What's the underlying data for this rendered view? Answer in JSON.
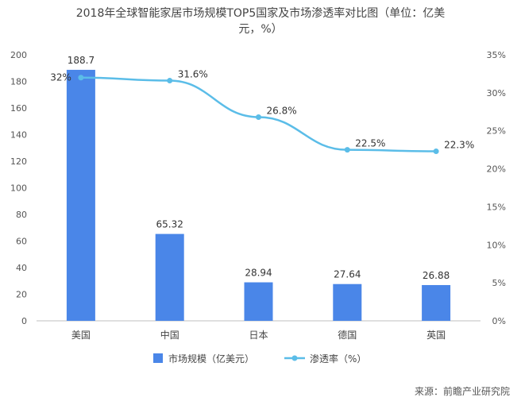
{
  "chart_data": {
    "type": "bar+line",
    "title": "2018年全球智能家居市场规模TOP5国家及市场渗透率对比图（单位：亿美元，%）",
    "categories": [
      "美国",
      "中国",
      "日本",
      "德国",
      "英国"
    ],
    "series": [
      {
        "name": "市场规模（亿美元）",
        "type": "bar",
        "axis": "left",
        "color": "#4a86e8",
        "values": [
          188.7,
          65.32,
          28.94,
          27.64,
          26.88
        ],
        "labels": [
          "188.7",
          "65.32",
          "28.94",
          "27.64",
          "26.88"
        ]
      },
      {
        "name": "渗透率（%）",
        "type": "line",
        "axis": "right",
        "color": "#5bbde8",
        "values": [
          32,
          31.6,
          26.8,
          22.5,
          22.3
        ],
        "labels": [
          "32%",
          "31.6%",
          "26.8%",
          "22.5%",
          "22.3%"
        ]
      }
    ],
    "y_left": {
      "min": 0,
      "max": 200,
      "ticks": [
        "0",
        "20",
        "40",
        "60",
        "80",
        "100",
        "120",
        "140",
        "160",
        "180",
        "200"
      ]
    },
    "y_right": {
      "min": 0,
      "max": 35,
      "ticks": [
        "0%",
        "5%",
        "10%",
        "15%",
        "20%",
        "25%",
        "30%",
        "35%"
      ]
    },
    "legend_position": "bottom",
    "grid": false
  },
  "header": {
    "title_line1": "2018年全球智能家居市场规模TOP5国家及市场渗透率对比图（单位：亿美",
    "title_line2": "元，%）"
  },
  "footer": {
    "source": "来源：前瞻产业研究院"
  }
}
